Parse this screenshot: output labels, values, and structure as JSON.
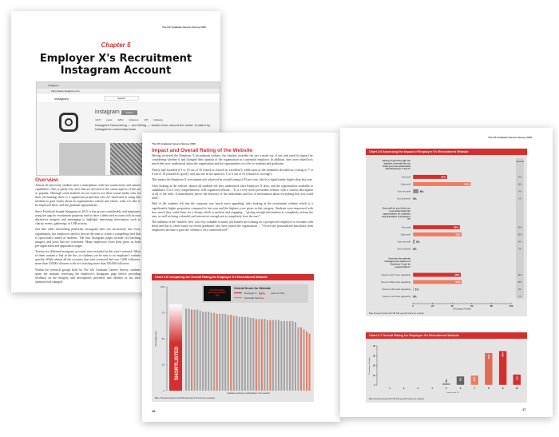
{
  "running_header": "The UK Graduate Careers Survey 2020",
  "page1": {
    "chapter": "Chapter 5",
    "title_line1": "Employer X's Recruitment",
    "title_line2": "Instagram Account",
    "browser": {
      "tab": "Instagram",
      "url": "https://www.instagram.com",
      "app": "Instagram",
      "search_placeholder": "Search",
      "profile_name": "instagram",
      "follow_label": "Follow",
      "stats": "4,847 posts  325m followers  187 following",
      "bio": "Instagram Discovering — and telling — stories from around the world. Curated by Instagram's community team."
    },
    "section_heading": "Overview",
    "paragraphs": [
      "Almost all university students have a smartphone, with fast connectivity and camera capabilities. This is partly why sites that are devoted to the visual aspects of life are so popular. Although some students do not want to use these social media sites for their job-hunting, there is a significant proportion who are interested in using this medium to gain clarity about an organisation's culture and values, what it is like to be employed there, and the graduate opportunities.",
      "Since Facebook bought Instagram in 2012, it has grown considerably and employers using the app for recruitment purposes tend to have a dedicated account with its own distinctive imagery and messaging to highlight interesting information such as charity events, gatherings or CSR activity.",
      "Just like other networking platforms, Instagram does not necessarily suit every organisation, but employers need to devote the time to create a compelling feed that is specifically aimed at students. The best Instagram pages include eye-catching imagery and posts that are consistent. Many employers focus their posts on both pre-application and application stages.",
      "Twenty-six different Instagram accounts were included in this year's research. Most of them contain a link in the bio, so students can be sent to an employer's website quickly. While almost all the accounts that were reviewed had over 1,000 followers, more than 10,000 followers with two boasting more than 350,000 followers.",
      "Within the research groups held for The UK Graduate Careers Survey, students spent ten minutes reviewing the employer's Instagram page before providing feedback on the imagery and descriptions provided, and whether or not their opinions had changed."
    ]
  },
  "page2": {
    "heading": "Impact and Overall Rating of the Website",
    "paragraphs": [
      "Having reviewed the Employer X recruitment website, the finalists awarded the site a mark out of ten, and rated its impact by considering whether it had changed their opinion of the organisation as a potential employer. In addition, they were asked how much they now understood about the organisation and the opportunities on offer to students and graduates.",
      "Nearly half awarded it 9 or 10 out of 10 (which is classed as 'excellent'), while most of the remainder decided on a rating of 7 or 8 out of 10 (classed as 'good'), and just one in ten opted for 5 or 6 out of 10 (classed as 'average').",
      "This means the Employer X recruitment site achieved an overall rating of 83 per cent, which is significantly higher than last year.",
      "After looking at the website, almost all students felt they understood what Employer X does, and the opportunities available to candidates. It is a very comprehensive, well organised website – \"It is a very nicely presented website, with a concise description of all of the roles. It immediately shows the diversity of the individuals and lots of information about everything that you could need\".",
      "Half of the students felt that the company was 'much more appealing' after looking at the recruitment website which is a significantly higher proportion compared to last year and the highest score given in this category. Students were impressed with how much they could learn via a design which is modern and engaging – \"giving enough information to completely inform the user, as well as being colourful and interactive enough not to completely bore the user\".",
      "The addition of the 'insiders view' was very valuable as many job hunters are looking for a prospective employer to resonate with them and this is often found via recent graduates who have joined the organisation – \"I loved the personalised anecdotes from employees because it gave the website a very connected feel\"."
    ],
    "page_number": "16"
  },
  "page3": {
    "page_number": "17"
  },
  "colors": {
    "accent": "#d32f2f",
    "light_accent": "#ef7b61",
    "grey_bar": "#999999",
    "panel": "#e4e4e4"
  },
  "chart_data": [
    {
      "id": "chart-2-5",
      "type": "bar",
      "title": "Chart 2.5  Comparing the Overall Rating for Employer X's Recruitment Website",
      "ylabel": "Percentage score",
      "xlabel": "Graduate employers participating in the research",
      "ylim": [
        0,
        100
      ],
      "yticks": [
        0,
        25,
        50,
        75,
        100
      ],
      "legend_title": "Overall Score for Website",
      "badge": "The UK Graduate Recruitment Awards 2020",
      "highlight_label": "SHORTLISTED",
      "series": [
        {
          "name": "Employer X",
          "value": 83,
          "note": "(Last Year 79%)",
          "color": "#d32f2f"
        },
        {
          "name": "Financial Services",
          "color": "#ef7b61"
        }
      ],
      "values": [
        79,
        79,
        78,
        78,
        78,
        77,
        76,
        76,
        76,
        75,
        75,
        74,
        74,
        74,
        74,
        73,
        73,
        72,
        72,
        71,
        71,
        71,
        71,
        70,
        70,
        69,
        69,
        69,
        69,
        68,
        68,
        68,
        68,
        68,
        67,
        67,
        67,
        67,
        67,
        66,
        61,
        61,
        59,
        57,
        55
      ],
      "financial_services_index": [
        2,
        11,
        16,
        25,
        27,
        30,
        41,
        43,
        44
      ],
      "source": "Base: Research groups with 184 final year job hunters per employer"
    },
    {
      "id": "chart-2-6",
      "type": "bar",
      "orientation": "horizontal",
      "title": "Chart 2.6  Assessing the Impact of Employer X's Recruitment Website",
      "xlabel": "Percentage of finalists",
      "xlim": [
        0,
        100
      ],
      "xticks": [
        0,
        20,
        40,
        60,
        80,
        100
      ],
      "last_year_label": "Last Year",
      "groups": [
        {
          "question": "Having looked through the website, how well do you think you now understand what Employer X does?",
          "items": [
            {
              "label": "Very well",
              "value": 35,
              "last_year": "27%"
            },
            {
              "label": "Quite well",
              "value": 59,
              "last_year": "63%"
            },
            {
              "label": "Not very well",
              "value": 6,
              "last_year": "9%"
            },
            {
              "label": "Not at all well",
              "value": 0,
              "last_year": "1%"
            }
          ]
        },
        {
          "question": "How well do you think you now understand the opportunities for students and graduates at Employer X?",
          "items": [
            {
              "label": "Very well",
              "value": 48,
              "last_year": "33%"
            },
            {
              "label": "Quite well",
              "value": 50,
              "last_year": "55%"
            },
            {
              "label": "Not very well",
              "value": 2,
              "last_year": "8%"
            },
            {
              "label": "Not at all well",
              "value": 0,
              "last_year": "3%"
            }
          ]
        },
        {
          "question": "How has the website changed your opinion of Employer X and its opportunities?",
          "items": [
            {
              "label": "Seems much more appealing",
              "value": 49,
              "last_year": "36%"
            },
            {
              "label": "Seems a little more appealing",
              "value": 50,
              "last_year": "55%"
            },
            {
              "label": "Seems a little less appealing",
              "value": 1,
              "last_year": "8%"
            },
            {
              "label": "Seems much less appealing",
              "value": 0,
              "last_year": "1%"
            }
          ]
        }
      ],
      "source": "Base: Research groups with 184 final year job hunters per employer"
    },
    {
      "id": "chart-2-7",
      "type": "bar",
      "title": "Chart 2.7  Overall Rating for Employer X's Recruitment Website",
      "ylabel": "Percentage of finalists",
      "xlabel": "Score out of 10",
      "ylim": [
        0,
        40
      ],
      "yticks": [
        0,
        10,
        20,
        30,
        40
      ],
      "categories": [
        "1",
        "2",
        "3",
        "4",
        "5",
        "6",
        "7",
        "8",
        "9",
        "10"
      ],
      "values": [
        0,
        0,
        0,
        0,
        2,
        9,
        10,
        33,
        35,
        11
      ],
      "source": "Base: Research groups with 184 final year job hunters per employer"
    }
  ]
}
